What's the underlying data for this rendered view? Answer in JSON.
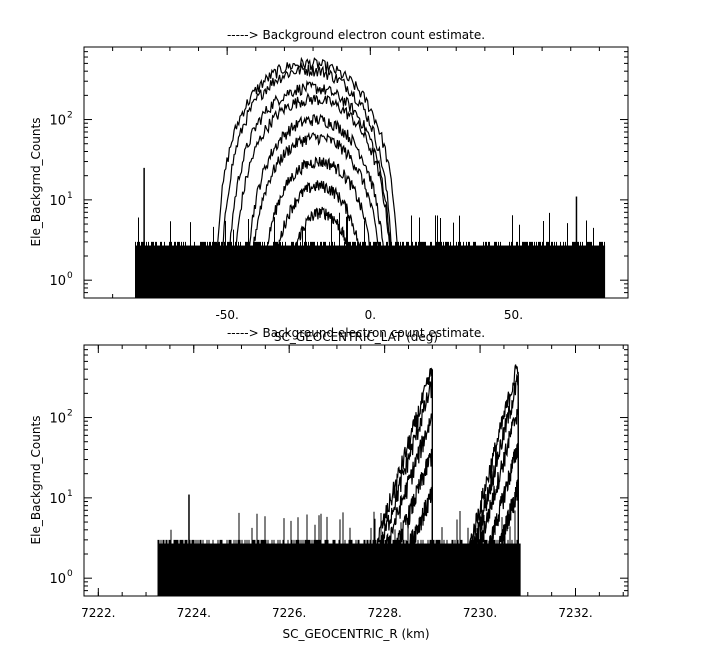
{
  "chart_data": [
    {
      "type": "line",
      "title": "-----> Background electron count estimate.",
      "xlabel": "SC_GEOCENTRIC_LAT (deg)",
      "ylabel": "Ele_Backgrnd_Counts",
      "xlim": [
        -100,
        90
      ],
      "ylim": [
        0.6,
        800
      ],
      "yscale": "log",
      "grid": false,
      "legend": "none",
      "x_ticks": [
        {
          "value": -50,
          "label": "-50."
        },
        {
          "value": 0,
          "label": "0."
        },
        {
          "value": 50,
          "label": "50."
        }
      ],
      "y_ticks": [
        {
          "value": 1,
          "label": "10",
          "exp": "0"
        },
        {
          "value": 10,
          "label": "10",
          "exp": "1"
        },
        {
          "value": 100,
          "label": "10",
          "exp": "2"
        }
      ],
      "noise": {
        "x_range": [
          -82,
          82
        ],
        "baseline": 1,
        "typical_max": 3,
        "spikes": [
          {
            "x": -79,
            "y": 25
          },
          {
            "x": 72,
            "y": 11
          }
        ]
      },
      "series": [
        {
          "center": -22,
          "half_width": 33,
          "peak": 500
        },
        {
          "center": -22,
          "half_width": 31,
          "peak": 420
        },
        {
          "center": -21,
          "half_width": 30,
          "peak": 250
        },
        {
          "center": -20,
          "half_width": 29,
          "peak": 180
        },
        {
          "center": -19,
          "half_width": 26,
          "peak": 100
        },
        {
          "center": -19,
          "half_width": 25,
          "peak": 60
        },
        {
          "center": -18,
          "half_width": 22,
          "peak": 30
        },
        {
          "center": -18,
          "half_width": 19,
          "peak": 15
        },
        {
          "center": -17,
          "half_width": 15,
          "peak": 7
        }
      ],
      "color": "#000000"
    },
    {
      "type": "line",
      "title": "-----> Background electron count estimate.",
      "xlabel": "SC_GEOCENTRIC_R (km)",
      "ylabel": "Ele_Backgrnd_Counts",
      "xlim": [
        7221.7,
        7233.1
      ],
      "ylim": [
        0.6,
        800
      ],
      "yscale": "log",
      "grid": false,
      "legend": "none",
      "x_ticks": [
        {
          "value": 7222,
          "label": "7222."
        },
        {
          "value": 7224,
          "label": "7224."
        },
        {
          "value": 7226,
          "label": "7226."
        },
        {
          "value": 7228,
          "label": "7228."
        },
        {
          "value": 7230,
          "label": "7230."
        },
        {
          "value": 7232,
          "label": "7232."
        }
      ],
      "y_ticks": [
        {
          "value": 1,
          "label": "10",
          "exp": "0"
        },
        {
          "value": 10,
          "label": "10",
          "exp": "1"
        },
        {
          "value": 100,
          "label": "10",
          "exp": "2"
        }
      ],
      "noise": {
        "x_range": [
          7223.25,
          7230.85
        ],
        "baseline": 1,
        "typical_max": 3,
        "spikes": [
          {
            "x": 7223.9,
            "y": 11
          }
        ]
      },
      "series": [
        {
          "start": 7227.6,
          "end": 7229.0,
          "peak": 450
        },
        {
          "start": 7227.7,
          "end": 7229.0,
          "peak": 300
        },
        {
          "start": 7227.8,
          "end": 7229.0,
          "peak": 120
        },
        {
          "start": 7228.0,
          "end": 7229.0,
          "peak": 40
        },
        {
          "start": 7228.2,
          "end": 7229.0,
          "peak": 12
        },
        {
          "start": 7229.6,
          "end": 7230.8,
          "peak": 550
        },
        {
          "start": 7229.7,
          "end": 7230.8,
          "peak": 350
        },
        {
          "start": 7229.8,
          "end": 7230.8,
          "peak": 150
        },
        {
          "start": 7230.0,
          "end": 7230.8,
          "peak": 50
        },
        {
          "start": 7230.2,
          "end": 7230.8,
          "peak": 15
        }
      ],
      "color": "#000000"
    }
  ]
}
